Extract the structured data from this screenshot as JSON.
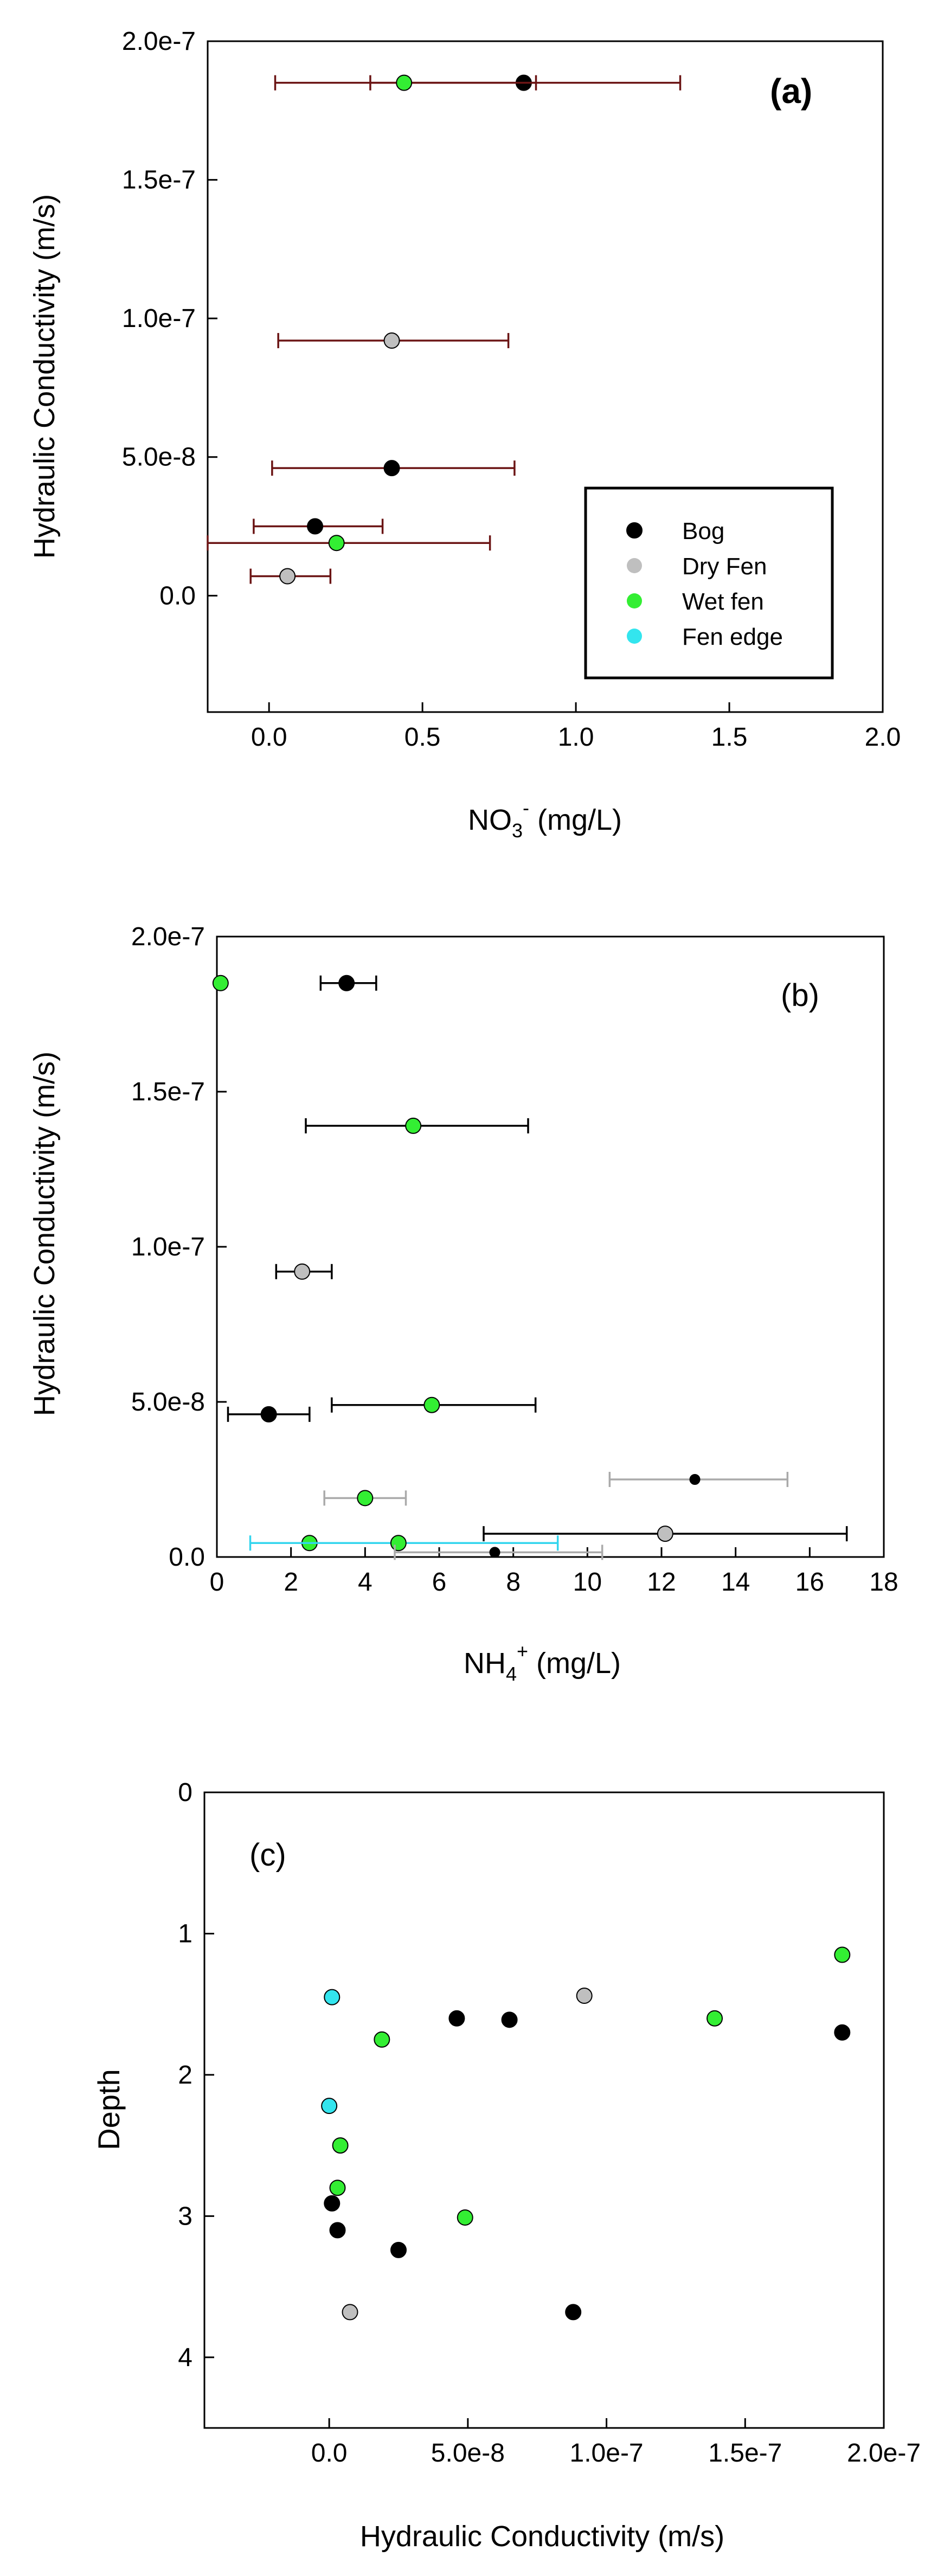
{
  "colors": {
    "bog": "#000000",
    "dry_fen": "#bfbfbf",
    "wet_fen": "#33ee33",
    "fen_edge": "#33e5ee",
    "errbar_a": "#6b1414",
    "errbar_b": "#000000",
    "errbar_b_grey": "#aaaaaa",
    "errbar_b_cyan": "#33d5ee"
  },
  "chart_data": [
    {
      "id": "a",
      "type": "scatter",
      "panel_label": "(a)",
      "xlabel_main": "NO",
      "xlabel_sub": "3",
      "xlabel_sup": "-",
      "xlabel_tail": " (mg/L)",
      "ylabel": "Hydraulic Conductivity (m/s)",
      "xlim": [
        -0.2,
        2.0
      ],
      "ylim": [
        -4.2e-08,
        2e-07
      ],
      "x_ticks": [
        0.0,
        0.5,
        1.0,
        1.5,
        2.0
      ],
      "x_tick_labels": [
        "0.0",
        "0.5",
        "1.0",
        "1.5",
        "2.0"
      ],
      "y_ticks": [
        0,
        5e-08,
        1e-07,
        1.5e-07,
        2e-07
      ],
      "y_tick_labels": [
        "0.0",
        "5.0e-8",
        "1.0e-7",
        "1.5e-7",
        "2.0e-7"
      ],
      "legend": [
        {
          "label": "Bog",
          "type": "bog"
        },
        {
          "label": "Dry Fen",
          "type": "dry_fen"
        },
        {
          "label": "Wet fen",
          "type": "wet_fen"
        },
        {
          "label": "Fen edge",
          "type": "fen_edge"
        }
      ],
      "points": [
        {
          "type": "bog",
          "x": 0.83,
          "y": 1.85e-07,
          "xerr_low": 0.33,
          "xerr_high": 1.34,
          "err": "a"
        },
        {
          "type": "wet_fen",
          "x": 0.44,
          "y": 1.85e-07,
          "xerr_low": 0.02,
          "xerr_high": 0.87,
          "err": "a"
        },
        {
          "type": "dry_fen",
          "x": 0.4,
          "y": 9.2e-08,
          "xerr_low": 0.03,
          "xerr_high": 0.78,
          "err": "a"
        },
        {
          "type": "bog",
          "x": 0.4,
          "y": 4.6e-08,
          "xerr_low": 0.01,
          "xerr_high": 0.8,
          "err": "a"
        },
        {
          "type": "bog",
          "x": 0.15,
          "y": 2.5e-08,
          "xerr_low": -0.05,
          "xerr_high": 0.37,
          "err": "a"
        },
        {
          "type": "wet_fen",
          "x": 0.22,
          "y": 1.9e-08,
          "xerr_low": -0.2,
          "xerr_high": 0.72,
          "err": "a"
        },
        {
          "type": "dry_fen",
          "x": 0.06,
          "y": 7e-09,
          "xerr_low": -0.06,
          "xerr_high": 0.2,
          "err": "a"
        }
      ]
    },
    {
      "id": "b",
      "type": "scatter",
      "panel_label": "(b)",
      "xlabel_main": "NH",
      "xlabel_sub": "4",
      "xlabel_sup": "+",
      "xlabel_tail": " (mg/L)",
      "ylabel": "Hydraulic Conductivity (m/s)",
      "xlim": [
        0,
        18
      ],
      "ylim": [
        0,
        2e-07
      ],
      "x_ticks": [
        0,
        2,
        4,
        6,
        8,
        10,
        12,
        14,
        16,
        18
      ],
      "x_tick_labels": [
        "0",
        "2",
        "4",
        "6",
        "8",
        "10",
        "12",
        "14",
        "16",
        "18"
      ],
      "y_ticks": [
        0,
        5e-08,
        1e-07,
        1.5e-07,
        2e-07
      ],
      "y_tick_labels": [
        "0.0",
        "5.0e-8",
        "1.0e-7",
        "1.5e-7",
        "2.0e-7"
      ],
      "points": [
        {
          "type": "bog",
          "x": 3.5,
          "y": 1.85e-07,
          "xerr_low": 2.8,
          "xerr_high": 4.3,
          "err": "b"
        },
        {
          "type": "wet_fen",
          "x": 0.1,
          "y": 1.85e-07
        },
        {
          "type": "wet_fen",
          "x": 5.3,
          "y": 1.39e-07,
          "xerr_low": 2.4,
          "xerr_high": 8.4,
          "err": "b"
        },
        {
          "type": "dry_fen",
          "x": 2.3,
          "y": 9.2e-08,
          "xerr_low": 1.6,
          "xerr_high": 3.1,
          "err": "b"
        },
        {
          "type": "wet_fen",
          "x": 5.8,
          "y": 4.9e-08,
          "xerr_low": 3.1,
          "xerr_high": 8.6,
          "err": "b"
        },
        {
          "type": "bog",
          "x": 1.4,
          "y": 4.6e-08,
          "xerr_low": 0.3,
          "xerr_high": 2.5,
          "err": "b"
        },
        {
          "type": "bog",
          "x": 12.9,
          "y": 2.5e-08,
          "xerr_low": 10.6,
          "xerr_high": 15.4,
          "err": "b_grey",
          "small": true
        },
        {
          "type": "wet_fen",
          "x": 4.0,
          "y": 1.9e-08,
          "xerr_low": 2.9,
          "xerr_high": 5.1,
          "err": "b_grey"
        },
        {
          "type": "dry_fen",
          "x": 12.1,
          "y": 7.5e-09,
          "xerr_low": 7.2,
          "xerr_high": 17.0,
          "err": "b"
        },
        {
          "type": "wet_fen",
          "x": 2.5,
          "y": 4.5e-09
        },
        {
          "type": "wet_fen",
          "x": 4.9,
          "y": 4.5e-09,
          "xerr_low": 0.9,
          "xerr_high": 9.2,
          "err": "b_cyan"
        },
        {
          "type": "bog",
          "x": 7.5,
          "y": 1.5e-09,
          "xerr_low": 4.8,
          "xerr_high": 10.4,
          "err": "b_grey",
          "small": true
        }
      ]
    },
    {
      "id": "c",
      "type": "scatter",
      "panel_label": "(c)",
      "xlabel": "Hydraulic Conductivity (m/s)",
      "ylabel": "Depth",
      "xlim": [
        -4.5e-08,
        2e-07
      ],
      "ylim": [
        4.5,
        0
      ],
      "x_ticks": [
        0,
        5e-08,
        1e-07,
        1.5e-07,
        2e-07
      ],
      "x_tick_labels": [
        "0.0",
        "5.0e-8",
        "1.0e-7",
        "1.5e-7",
        "2.0e-7"
      ],
      "y_ticks": [
        0,
        1,
        2,
        3,
        4
      ],
      "y_tick_labels": [
        "0",
        "1",
        "2",
        "3",
        "4"
      ],
      "points": [
        {
          "type": "wet_fen",
          "x": 1.85e-07,
          "y": 1.15
        },
        {
          "type": "bog",
          "x": 1.85e-07,
          "y": 1.7
        },
        {
          "type": "wet_fen",
          "x": 1.39e-07,
          "y": 1.6
        },
        {
          "type": "dry_fen",
          "x": 9.2e-08,
          "y": 1.44
        },
        {
          "type": "bog",
          "x": 6.5e-08,
          "y": 1.61
        },
        {
          "type": "bog",
          "x": 4.6e-08,
          "y": 1.6
        },
        {
          "type": "wet_fen",
          "x": 1.9e-08,
          "y": 1.75
        },
        {
          "type": "fen_edge",
          "x": 1e-09,
          "y": 1.45
        },
        {
          "type": "fen_edge",
          "x": 0.0,
          "y": 2.22
        },
        {
          "type": "wet_fen",
          "x": 4e-09,
          "y": 2.5
        },
        {
          "type": "wet_fen",
          "x": 3e-09,
          "y": 2.8
        },
        {
          "type": "bog",
          "x": 1e-09,
          "y": 2.91
        },
        {
          "type": "wet_fen",
          "x": 4.9e-08,
          "y": 3.01
        },
        {
          "type": "bog",
          "x": 3e-09,
          "y": 3.1
        },
        {
          "type": "bog",
          "x": 2.5e-08,
          "y": 3.24
        },
        {
          "type": "dry_fen",
          "x": 7.5e-09,
          "y": 3.68
        },
        {
          "type": "bog",
          "x": 8.8e-08,
          "y": 3.68
        }
      ]
    }
  ]
}
